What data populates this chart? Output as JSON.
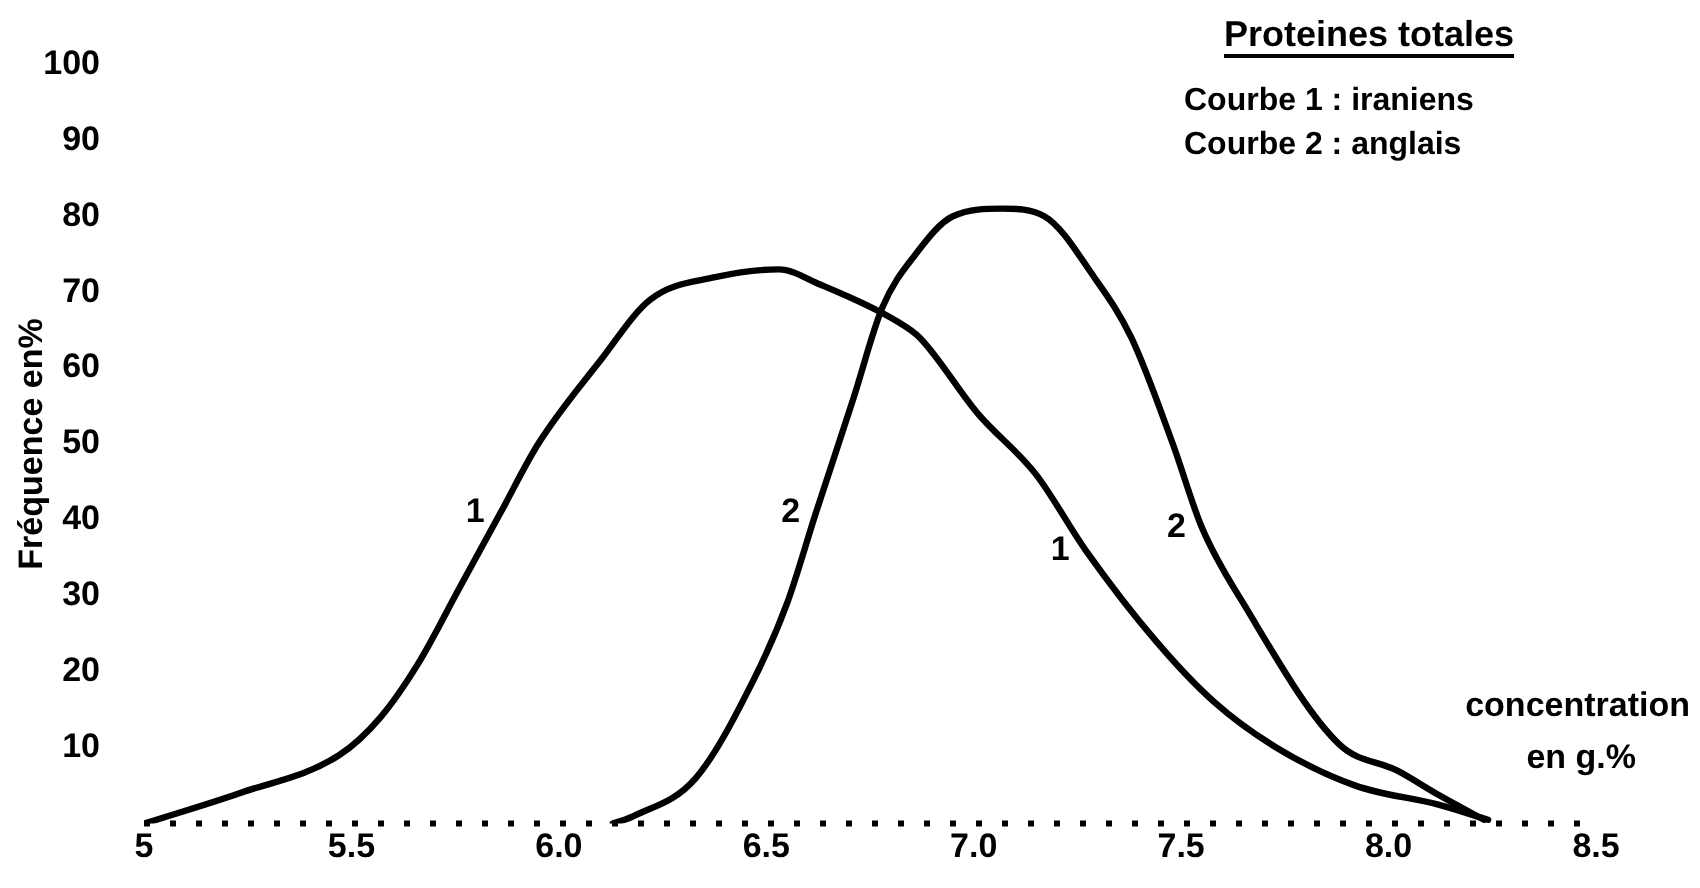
{
  "chart_data": {
    "type": "line",
    "title": "Proteines totales",
    "xlabel": "concentration en g.%",
    "ylabel": "Fréquence en%",
    "xlim": [
      5,
      8.5
    ],
    "ylim": [
      0,
      100
    ],
    "xticks": [
      5,
      5.5,
      {
        "value": 6,
        "label": "6.0"
      },
      6.5,
      {
        "value": 7,
        "label": "7.0"
      },
      7.5,
      {
        "value": 8,
        "label": "8.0"
      },
      8.5
    ],
    "yticks": [
      10,
      20,
      30,
      40,
      50,
      60,
      70,
      80,
      90,
      100
    ],
    "grid": false,
    "legend": false,
    "marker": "none",
    "line_style": "solid",
    "tick_labels": "xy",
    "series": [
      {
        "color": "#000000",
        "x": [
          5,
          5.23,
          5.47,
          5.57,
          5.66,
          5.76,
          5.86,
          5.95,
          6.1,
          6.22,
          6.38,
          6.53,
          6.63,
          6.82,
          6.87,
          7.01,
          7.15,
          7.27,
          7.44,
          7.58,
          7.73,
          7.92,
          8.12,
          8.24
        ],
        "values": [
          0,
          4,
          9,
          14,
          21,
          31,
          41,
          50,
          61,
          69,
          72,
          73,
          71,
          66,
          64,
          54,
          46,
          36,
          24,
          16,
          10,
          5,
          2.5,
          0.5
        ]
      },
      {
        "color": "#000000",
        "x": [
          6.13,
          6.18,
          6.33,
          6.47,
          6.55,
          6.62,
          6.71,
          6.78,
          6.86,
          6.95,
          7.07,
          7.17,
          7.29,
          7.38,
          7.48,
          7.55,
          7.65,
          7.88,
          8.02,
          8.12,
          8.23
        ],
        "values": [
          0,
          1,
          6,
          19,
          29,
          41,
          56,
          68,
          75,
          80,
          81,
          80,
          72,
          64,
          50,
          39,
          29,
          10.5,
          7,
          3.8,
          0.5
        ]
      }
    ],
    "annotations": [
      "Courbe 1 : iraniens",
      "Courbe 2 : anglais",
      {
        "text": "1",
        "x": 5.86,
        "y": 41
      },
      {
        "text": "2",
        "x": 6.62,
        "y": 41
      },
      {
        "text": "1",
        "x": 7.27,
        "y": 36
      },
      {
        "text": "2",
        "x": 7.55,
        "y": 39
      }
    ]
  }
}
